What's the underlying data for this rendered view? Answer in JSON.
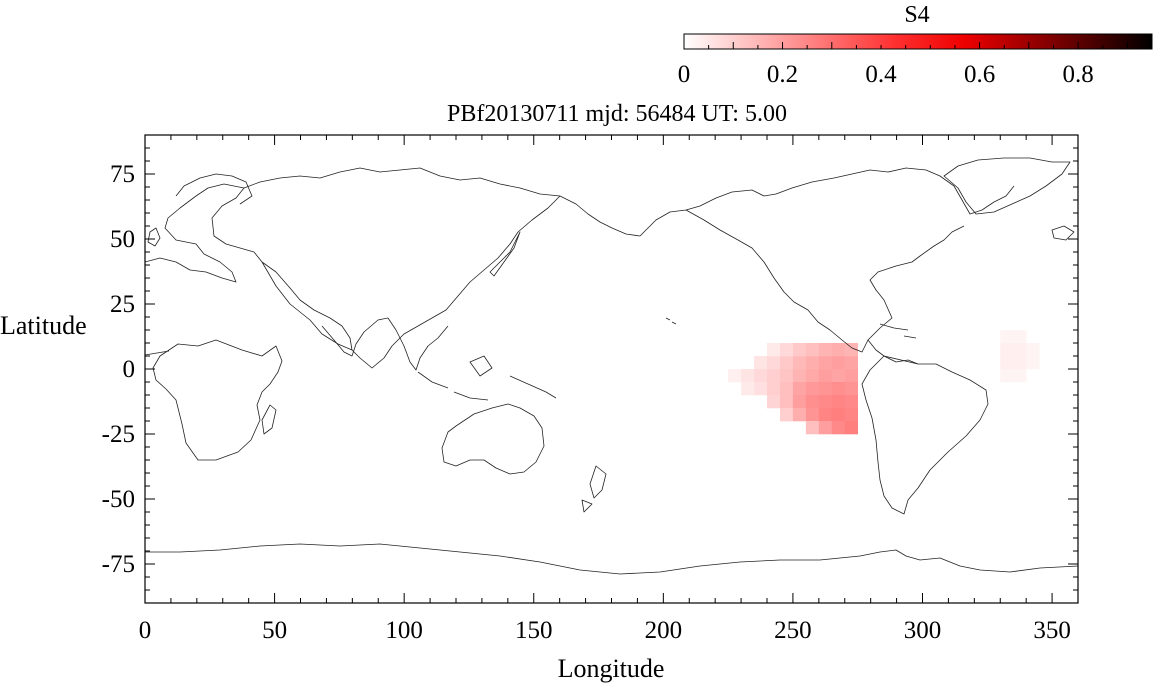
{
  "figure": {
    "title": "PBf20130711  mjd: 56484  UT:   5.00"
  },
  "colorbar": {
    "label": "S4",
    "range": [
      0,
      0.95
    ],
    "ticks": [
      0,
      0.2,
      0.4,
      0.6,
      0.8
    ],
    "tick_labels": [
      "0",
      "0.2",
      "0.4",
      "0.6",
      "0.8"
    ],
    "colors": {
      "low": "#ffffff",
      "mid": "#ff0000",
      "high": "#000000"
    }
  },
  "chart_data": {
    "type": "heatmap",
    "title": "PBf20130711  mjd: 56484  UT:   5.00",
    "xlabel": "Longitude",
    "ylabel": "Latitude",
    "xlim": [
      0,
      360
    ],
    "ylim": [
      -90,
      90
    ],
    "xticks": [
      0,
      50,
      100,
      150,
      200,
      250,
      300,
      350
    ],
    "xtick_labels": [
      "0",
      "50",
      "100",
      "150",
      "200",
      "250",
      "300",
      "350"
    ],
    "yticks": [
      75,
      50,
      25,
      0,
      -25,
      -50,
      -75
    ],
    "ytick_labels": [
      "75",
      "50",
      "25",
      "0",
      "-25",
      "-50",
      "-75"
    ],
    "value_label": "S4",
    "cells": [
      {
        "lon": 225,
        "lat": -5,
        "s4": 0.03
      },
      {
        "lon": 230,
        "lat": -5,
        "s4": 0.05
      },
      {
        "lon": 235,
        "lat": -5,
        "s4": 0.07
      },
      {
        "lon": 240,
        "lat": -5,
        "s4": 0.09
      },
      {
        "lon": 245,
        "lat": -5,
        "s4": 0.11
      },
      {
        "lon": 250,
        "lat": -5,
        "s4": 0.14
      },
      {
        "lon": 255,
        "lat": -5,
        "s4": 0.16
      },
      {
        "lon": 260,
        "lat": -5,
        "s4": 0.18
      },
      {
        "lon": 265,
        "lat": -5,
        "s4": 0.17
      },
      {
        "lon": 270,
        "lat": -5,
        "s4": 0.18
      },
      {
        "lon": 235,
        "lat": 0,
        "s4": 0.05
      },
      {
        "lon": 240,
        "lat": 0,
        "s4": 0.07
      },
      {
        "lon": 245,
        "lat": 0,
        "s4": 0.1
      },
      {
        "lon": 250,
        "lat": 0,
        "s4": 0.13
      },
      {
        "lon": 255,
        "lat": 0,
        "s4": 0.15
      },
      {
        "lon": 260,
        "lat": 0,
        "s4": 0.17
      },
      {
        "lon": 265,
        "lat": 0,
        "s4": 0.18
      },
      {
        "lon": 270,
        "lat": 0,
        "s4": 0.17
      },
      {
        "lon": 240,
        "lat": 5,
        "s4": 0.04
      },
      {
        "lon": 245,
        "lat": 5,
        "s4": 0.07
      },
      {
        "lon": 250,
        "lat": 5,
        "s4": 0.1
      },
      {
        "lon": 255,
        "lat": 5,
        "s4": 0.12
      },
      {
        "lon": 260,
        "lat": 5,
        "s4": 0.14
      },
      {
        "lon": 265,
        "lat": 5,
        "s4": 0.15
      },
      {
        "lon": 270,
        "lat": 5,
        "s4": 0.14
      },
      {
        "lon": 230,
        "lat": -10,
        "s4": 0.04
      },
      {
        "lon": 235,
        "lat": -10,
        "s4": 0.06
      },
      {
        "lon": 240,
        "lat": -10,
        "s4": 0.09
      },
      {
        "lon": 245,
        "lat": -10,
        "s4": 0.12
      },
      {
        "lon": 250,
        "lat": -10,
        "s4": 0.17
      },
      {
        "lon": 255,
        "lat": -10,
        "s4": 0.19
      },
      {
        "lon": 260,
        "lat": -10,
        "s4": 0.2
      },
      {
        "lon": 265,
        "lat": -10,
        "s4": 0.21
      },
      {
        "lon": 270,
        "lat": -10,
        "s4": 0.2
      },
      {
        "lon": 240,
        "lat": -15,
        "s4": 0.08
      },
      {
        "lon": 245,
        "lat": -15,
        "s4": 0.12
      },
      {
        "lon": 250,
        "lat": -15,
        "s4": 0.18
      },
      {
        "lon": 255,
        "lat": -15,
        "s4": 0.21
      },
      {
        "lon": 260,
        "lat": -15,
        "s4": 0.22
      },
      {
        "lon": 265,
        "lat": -15,
        "s4": 0.23
      },
      {
        "lon": 270,
        "lat": -15,
        "s4": 0.22
      },
      {
        "lon": 245,
        "lat": -20,
        "s4": 0.09
      },
      {
        "lon": 250,
        "lat": -20,
        "s4": 0.15
      },
      {
        "lon": 255,
        "lat": -20,
        "s4": 0.2
      },
      {
        "lon": 260,
        "lat": -20,
        "s4": 0.23
      },
      {
        "lon": 265,
        "lat": -20,
        "s4": 0.24
      },
      {
        "lon": 270,
        "lat": -20,
        "s4": 0.23
      },
      {
        "lon": 255,
        "lat": -25,
        "s4": 0.12
      },
      {
        "lon": 260,
        "lat": -25,
        "s4": 0.18
      },
      {
        "lon": 265,
        "lat": -25,
        "s4": 0.22
      },
      {
        "lon": 270,
        "lat": -25,
        "s4": 0.24
      },
      {
        "lon": 330,
        "lat": -5,
        "s4": 0.02
      },
      {
        "lon": 335,
        "lat": -5,
        "s4": 0.02
      },
      {
        "lon": 330,
        "lat": 0,
        "s4": 0.03
      },
      {
        "lon": 335,
        "lat": 0,
        "s4": 0.03
      },
      {
        "lon": 340,
        "lat": 0,
        "s4": 0.02
      },
      {
        "lon": 330,
        "lat": 5,
        "s4": 0.03
      },
      {
        "lon": 335,
        "lat": 5,
        "s4": 0.03
      },
      {
        "lon": 340,
        "lat": 5,
        "s4": 0.02
      },
      {
        "lon": 330,
        "lat": 10,
        "s4": 0.02
      },
      {
        "lon": 335,
        "lat": 10,
        "s4": 0.02
      }
    ]
  }
}
